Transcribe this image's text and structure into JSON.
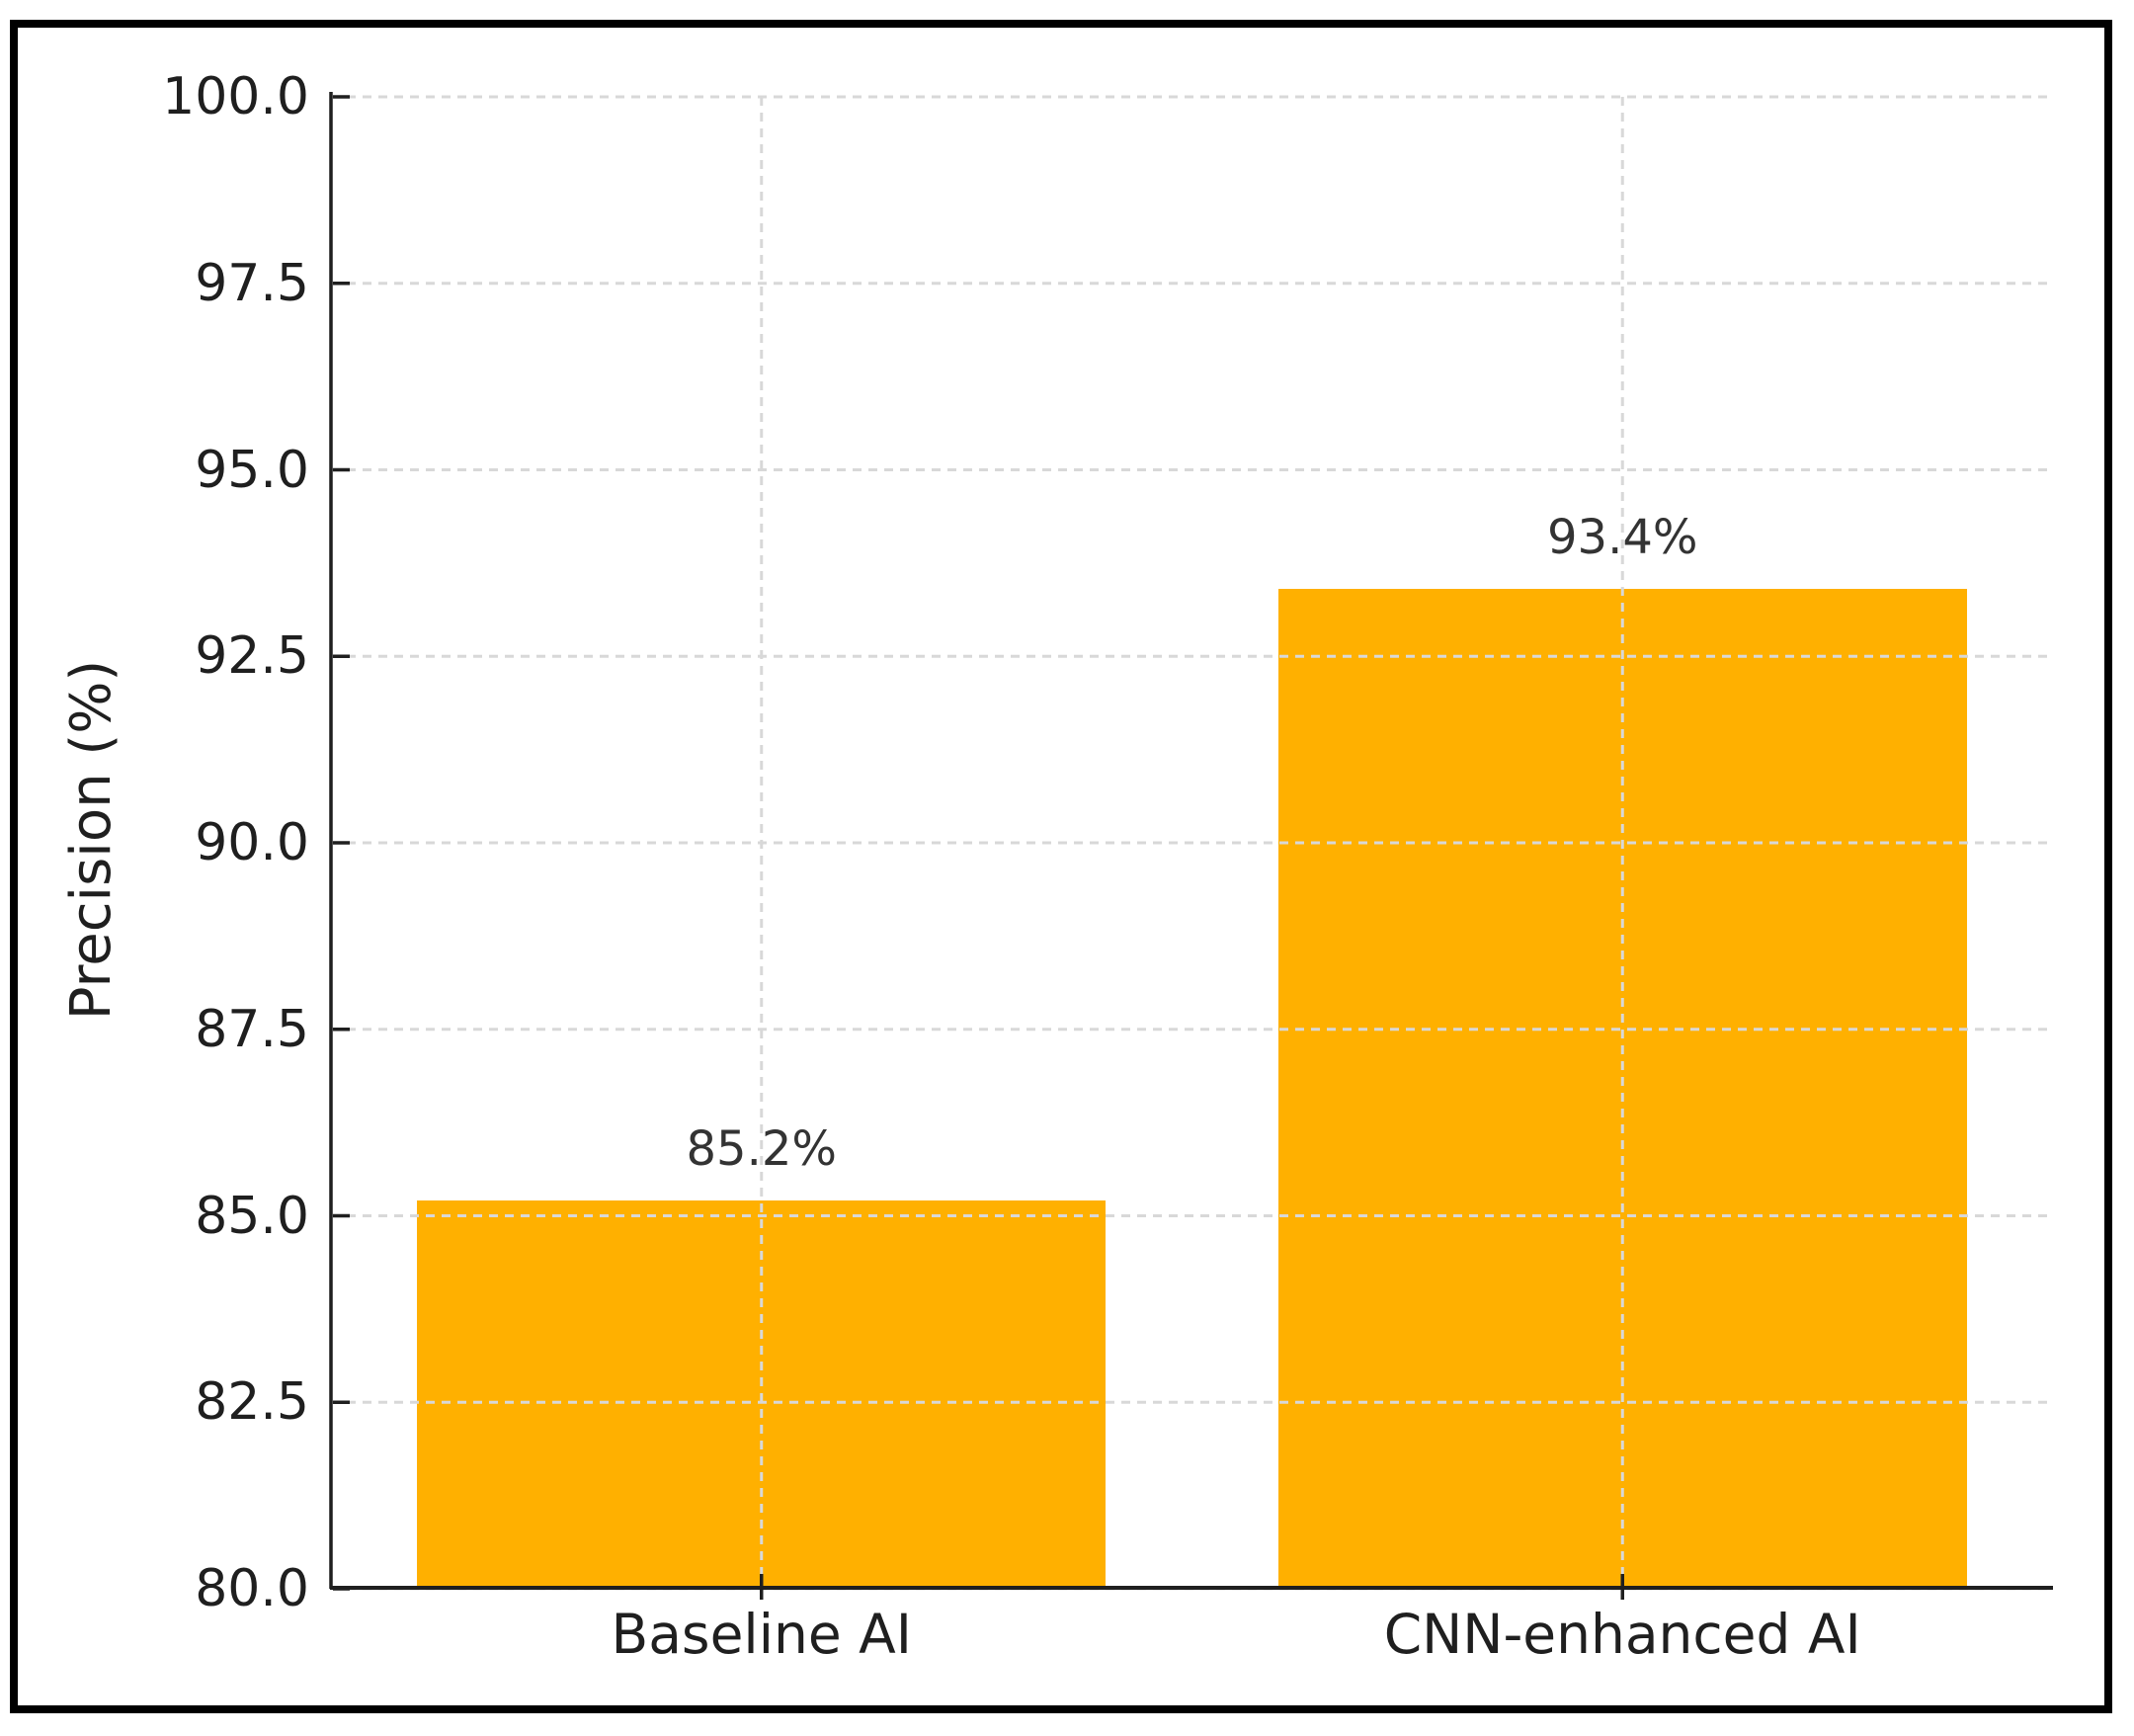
{
  "chart_data": {
    "type": "bar",
    "title": "",
    "categories": [
      "Baseline AI",
      "CNN-enhanced AI"
    ],
    "values": [
      85.2,
      93.4
    ],
    "bar_labels": [
      "85.2%",
      "93.4%"
    ],
    "xlabel": "",
    "ylabel": "Precision (%)",
    "ylim": [
      80.0,
      100.0
    ],
    "yticks": [
      80.0,
      82.5,
      85.0,
      87.5,
      90.0,
      92.5,
      95.0,
      97.5,
      100.0
    ],
    "ytick_labels": [
      "80.0",
      "82.5",
      "85.0",
      "87.5",
      "90.0",
      "92.5",
      "95.0",
      "97.5",
      "100.0"
    ],
    "bar_width_fraction": 0.8,
    "grid": {
      "horizontal": true,
      "vertical": true,
      "style": "dashed",
      "drawn_on_top_of_bars": true
    },
    "legend_position": "none"
  },
  "colors": {
    "bar": "#FFB000",
    "grid": "#D8D8D8",
    "axis": "#1F1F1F",
    "tick_label": "#1F1F1F",
    "value_label": "#333333",
    "frame_border": "#000000",
    "background": "#FFFFFF"
  }
}
